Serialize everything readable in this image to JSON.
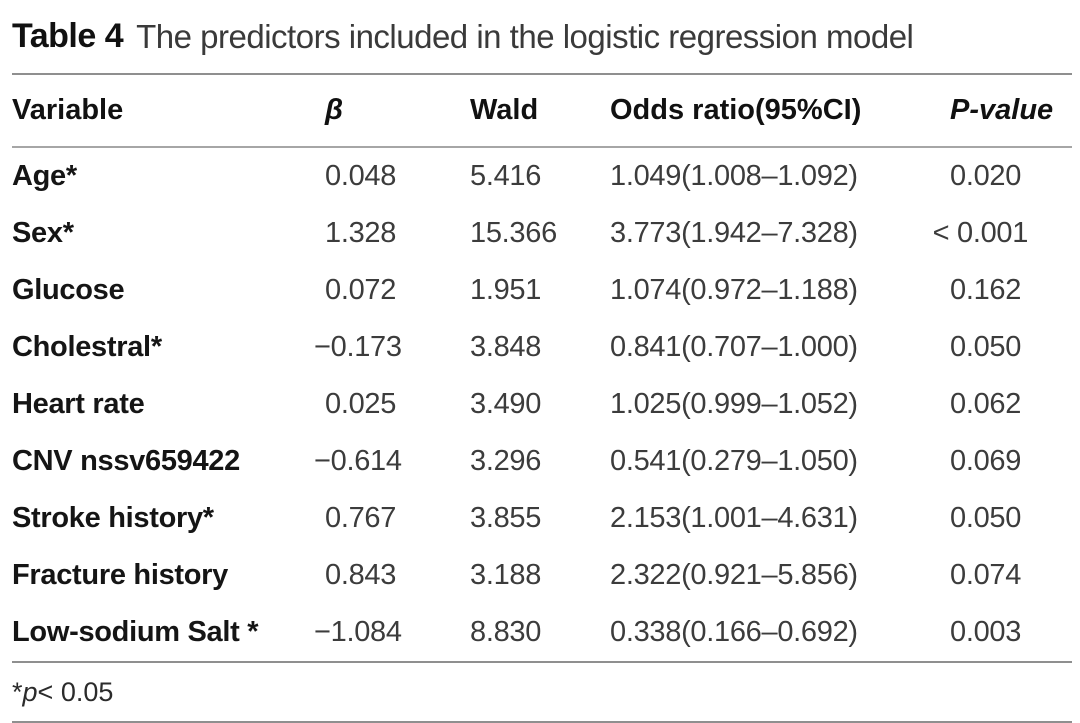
{
  "table": {
    "label": "Table 4",
    "caption": "The predictors included in the logistic regression model",
    "columns": [
      "Variable",
      "β",
      "Wald",
      "Odds ratio(95%CI)",
      "P-value"
    ],
    "rows": [
      {
        "variable": "Age*",
        "beta": "0.048",
        "wald": "5.416",
        "or": "1.049(1.008–1.092)",
        "p": "0.020"
      },
      {
        "variable": "Sex*",
        "beta": "1.328",
        "wald": "15.366",
        "or": "3.773(1.942–7.328)",
        "p": "< 0.001"
      },
      {
        "variable": "Glucose",
        "beta": "0.072",
        "wald": "1.951",
        "or": "1.074(0.972–1.188)",
        "p": "0.162"
      },
      {
        "variable": "Cholestral*",
        "beta": "−0.173",
        "wald": "3.848",
        "or": "0.841(0.707–1.000)",
        "p": "0.050"
      },
      {
        "variable": "Heart rate",
        "beta": "0.025",
        "wald": "3.490",
        "or": "1.025(0.999–1.052)",
        "p": "0.062"
      },
      {
        "variable": "CNV nssv659422",
        "beta": "−0.614",
        "wald": "3.296",
        "or": "0.541(0.279–1.050)",
        "p": "0.069"
      },
      {
        "variable": "Stroke history*",
        "beta": "0.767",
        "wald": "3.855",
        "or": "2.153(1.001–4.631)",
        "p": "0.050"
      },
      {
        "variable": "Fracture history",
        "beta": "0.843",
        "wald": "3.188",
        "or": "2.322(0.921–5.856)",
        "p": "0.074"
      },
      {
        "variable": "Low-sodium Salt *",
        "beta": "−1.084",
        "wald": "8.830",
        "or": "0.338(0.166–0.692)",
        "p": "0.003"
      }
    ],
    "footnote": {
      "star": "*",
      "p": "p",
      "rest": " < 0.05"
    }
  }
}
